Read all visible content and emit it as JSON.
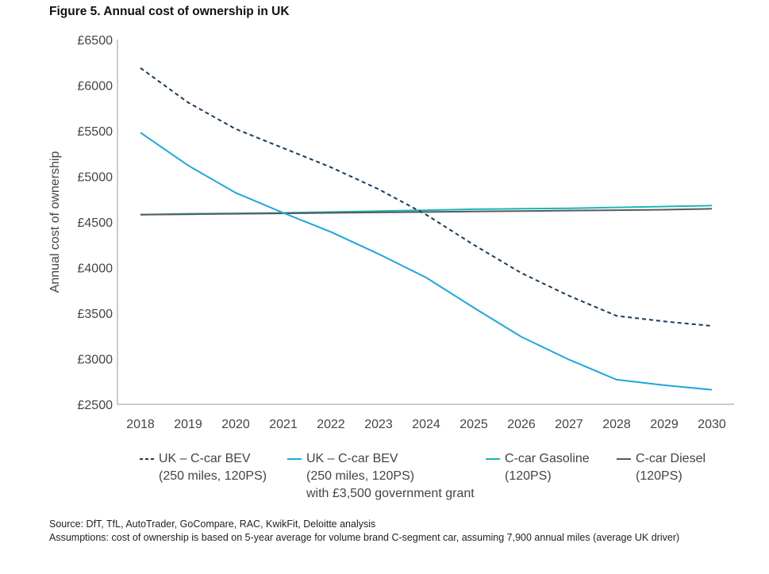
{
  "title": "Figure 5. Annual cost of ownership in UK",
  "chart_data": {
    "type": "line",
    "title": "Figure 5. Annual cost of ownership in UK",
    "xlabel": "",
    "ylabel": "Annual cost of ownership",
    "x": [
      "2018",
      "2019",
      "2020",
      "2021",
      "2022",
      "2023",
      "2024",
      "2025",
      "2026",
      "2027",
      "2028",
      "2029",
      "2030"
    ],
    "ylim": [
      2500,
      6500
    ],
    "yticks": [
      2500,
      3000,
      3500,
      4000,
      4500,
      5000,
      5500,
      6000,
      6500
    ],
    "ytick_labels": [
      "£2500",
      "£3000",
      "£3500",
      "£4000",
      "£4500",
      "£5000",
      "£5500",
      "£6000",
      "£6500"
    ],
    "grid": false,
    "legend_position": "bottom",
    "series": [
      {
        "name": "UK – C-car BEV",
        "name_lines": [
          "UK – C-car BEV",
          "(250 miles, 120PS)"
        ],
        "color": "#1a3a5c",
        "style": "dashed",
        "values": [
          6190,
          5810,
          5520,
          5310,
          5100,
          4860,
          4580,
          4250,
          3940,
          3690,
          3470,
          3410,
          3360
        ]
      },
      {
        "name": "UK – C-car BEV",
        "name_lines": [
          "UK – C-car BEV",
          "(250 miles, 120PS)",
          "with £3,500 government grant"
        ],
        "color": "#1ea7e0",
        "style": "solid",
        "values": [
          5480,
          5120,
          4820,
          4600,
          4390,
          4150,
          3890,
          3560,
          3240,
          2990,
          2770,
          2710,
          2660
        ]
      },
      {
        "name": "C-car Gasoline",
        "name_lines": [
          "C-car Gasoline",
          "(120PS)"
        ],
        "color": "#1fb5b5",
        "style": "solid",
        "values": [
          4580,
          4590,
          4595,
          4600,
          4610,
          4620,
          4630,
          4640,
          4645,
          4650,
          4660,
          4670,
          4680
        ]
      },
      {
        "name": "C-car Diesel",
        "name_lines": [
          "C-car Diesel",
          "(120PS)"
        ],
        "color": "#555a60",
        "style": "solid",
        "values": [
          4580,
          4585,
          4590,
          4595,
          4600,
          4605,
          4610,
          4615,
          4620,
          4625,
          4630,
          4635,
          4645
        ]
      }
    ]
  },
  "footer": {
    "source": "Source: DfT, TfL, AutoTrader, GoCompare, RAC, KwikFit, Deloitte analysis",
    "assumptions": "Assumptions: cost of ownership is based on 5-year average for volume brand C-segment car, assuming 7,900 annual miles (average UK driver)"
  }
}
